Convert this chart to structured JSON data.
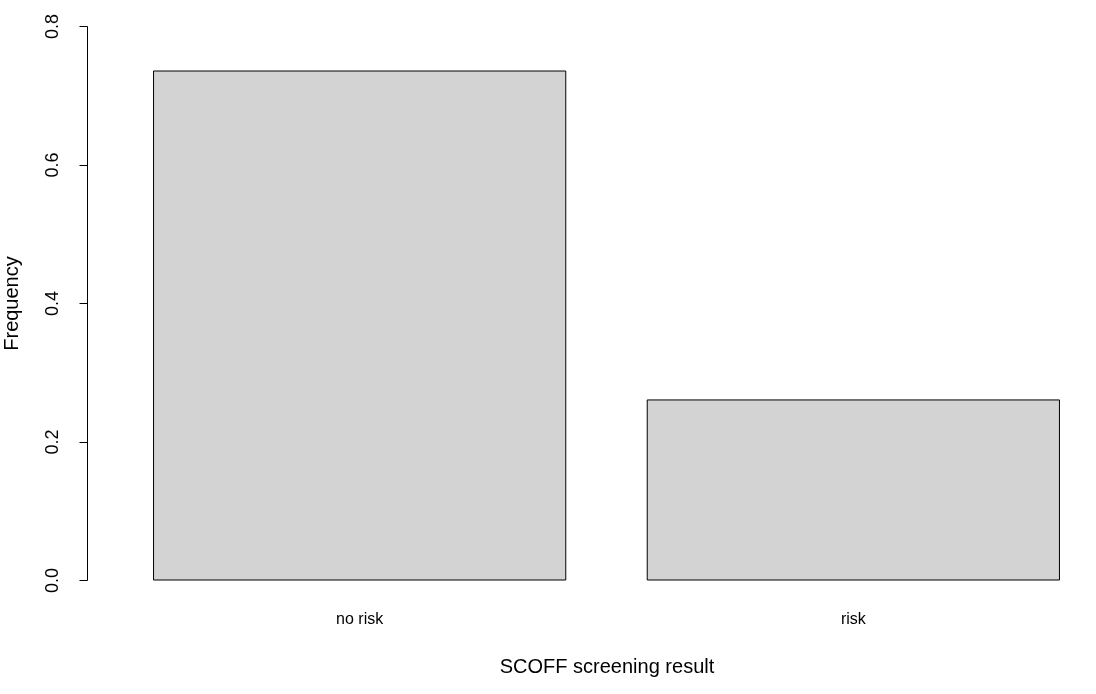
{
  "chart_data": {
    "type": "bar",
    "xlabel": "SCOFF screening result",
    "ylabel": "Frequency",
    "categories": [
      "no risk",
      "risk"
    ],
    "values": [
      0.735,
      0.26
    ],
    "color": "#d3d3d3",
    "ylim": [
      0,
      0.8
    ],
    "yticks": [
      {
        "value": 0,
        "label": "0.0"
      },
      {
        "value": 0.2,
        "label": "0.2"
      },
      {
        "value": 0.4,
        "label": "0.4"
      },
      {
        "value": 0.6,
        "label": "0.6"
      },
      {
        "value": 0.8,
        "label": "0.8"
      }
    ],
    "grid": false
  }
}
